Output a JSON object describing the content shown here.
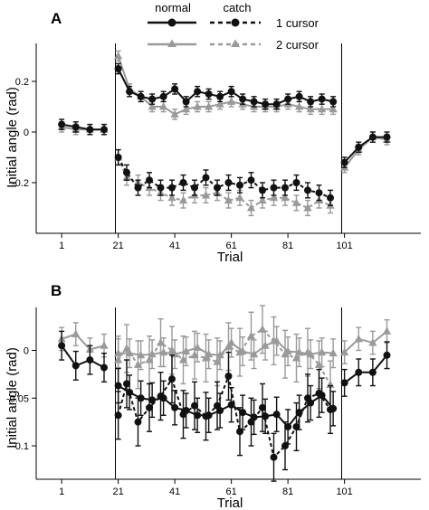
{
  "legend": {
    "header_normal": "normal",
    "header_catch": "catch",
    "row1_label": "1 cursor",
    "row2_label": "2 cursor"
  },
  "colors": {
    "one_cursor": "#111111",
    "two_cursor": "#9a9a9a"
  },
  "chart_data": [
    {
      "panel": "A",
      "type": "line",
      "xlabel": "Trial",
      "ylabel": "Initial angle (rad)",
      "xlim": [
        -8,
        128
      ],
      "ylim": [
        -0.4,
        0.35
      ],
      "xticks": [
        1,
        21,
        41,
        61,
        81,
        101
      ],
      "xtick_labels": [
        "1",
        "21",
        "41",
        "61",
        "81",
        "101"
      ],
      "yticks": [
        -0.2,
        0,
        0.2
      ],
      "ytick_labels": [
        "-0.2",
        "0",
        "0.2"
      ],
      "block_boundaries": [
        20,
        100
      ],
      "series": [
        {
          "name": "normal 1 cursor",
          "group": "one",
          "condition": "normal",
          "segments": [
            {
              "x": [
                1,
                6,
                11,
                16
              ],
              "y": [
                0.03,
                0.02,
                0.01,
                0.01
              ],
              "err": [
                0.02,
                0.02,
                0.02,
                0.02
              ]
            },
            {
              "x": [
                21,
                25,
                29,
                33,
                37,
                41,
                45,
                49,
                53,
                57,
                61,
                65,
                69,
                73,
                77,
                81,
                85,
                89,
                93,
                97
              ],
              "y": [
                0.25,
                0.16,
                0.14,
                0.13,
                0.14,
                0.17,
                0.12,
                0.16,
                0.15,
                0.14,
                0.16,
                0.13,
                0.12,
                0.11,
                0.11,
                0.13,
                0.14,
                0.12,
                0.13,
                0.12
              ],
              "err": [
                0.02,
                0.02,
                0.02,
                0.02,
                0.02,
                0.02,
                0.02,
                0.02,
                0.02,
                0.02,
                0.02,
                0.02,
                0.02,
                0.02,
                0.02,
                0.02,
                0.02,
                0.02,
                0.02,
                0.02
              ]
            },
            {
              "x": [
                101,
                106,
                111,
                116
              ],
              "y": [
                -0.12,
                -0.06,
                -0.02,
                -0.02
              ],
              "err": [
                0.02,
                0.02,
                0.02,
                0.02
              ]
            }
          ]
        },
        {
          "name": "normal 2 cursor",
          "group": "two",
          "condition": "normal",
          "segments": [
            {
              "x": [
                1,
                6,
                11,
                16
              ],
              "y": [
                0.02,
                0.01,
                0.01,
                0.01
              ],
              "err": [
                0.02,
                0.02,
                0.02,
                0.02
              ]
            },
            {
              "x": [
                21,
                25,
                29,
                33,
                37,
                41,
                45,
                49,
                53,
                57,
                61,
                65,
                69,
                73,
                77,
                81,
                85,
                89,
                93,
                97
              ],
              "y": [
                0.3,
                0.17,
                0.14,
                0.1,
                0.1,
                0.07,
                0.09,
                0.1,
                0.1,
                0.11,
                0.12,
                0.11,
                0.1,
                0.1,
                0.1,
                0.11,
                0.1,
                0.09,
                0.09,
                0.09
              ],
              "err": [
                0.02,
                0.02,
                0.02,
                0.02,
                0.02,
                0.02,
                0.02,
                0.02,
                0.02,
                0.02,
                0.02,
                0.02,
                0.02,
                0.02,
                0.02,
                0.02,
                0.02,
                0.02,
                0.02,
                0.02
              ]
            },
            {
              "x": [
                101,
                106,
                111,
                116
              ],
              "y": [
                -0.14,
                -0.07,
                -0.02,
                -0.03
              ],
              "err": [
                0.02,
                0.02,
                0.02,
                0.02
              ]
            }
          ]
        },
        {
          "name": "catch 1 cursor",
          "group": "one",
          "condition": "catch",
          "segments": [
            {
              "x": [
                21,
                24,
                28,
                32,
                36,
                40,
                44,
                48,
                52,
                56,
                60,
                64,
                68,
                72,
                76,
                80,
                84,
                88,
                92,
                96
              ],
              "y": [
                -0.1,
                -0.16,
                -0.22,
                -0.19,
                -0.22,
                -0.22,
                -0.2,
                -0.22,
                -0.18,
                -0.22,
                -0.2,
                -0.21,
                -0.19,
                -0.23,
                -0.22,
                -0.22,
                -0.2,
                -0.23,
                -0.24,
                -0.26
              ],
              "err": [
                0.03,
                0.03,
                0.03,
                0.03,
                0.03,
                0.03,
                0.03,
                0.03,
                0.03,
                0.03,
                0.03,
                0.03,
                0.03,
                0.03,
                0.03,
                0.03,
                0.03,
                0.03,
                0.03,
                0.03
              ]
            }
          ]
        },
        {
          "name": "catch 2 cursor",
          "group": "two",
          "condition": "catch",
          "segments": [
            {
              "x": [
                21,
                24,
                28,
                32,
                36,
                40,
                44,
                48,
                52,
                56,
                60,
                64,
                68,
                72,
                76,
                80,
                84,
                88,
                92,
                96
              ],
              "y": [
                -0.1,
                -0.18,
                -0.2,
                -0.22,
                -0.24,
                -0.26,
                -0.27,
                -0.25,
                -0.25,
                -0.24,
                -0.27,
                -0.26,
                -0.3,
                -0.27,
                -0.26,
                -0.26,
                -0.28,
                -0.3,
                -0.27,
                -0.29
              ],
              "err": [
                0.03,
                0.03,
                0.03,
                0.03,
                0.03,
                0.03,
                0.03,
                0.03,
                0.03,
                0.03,
                0.03,
                0.03,
                0.03,
                0.03,
                0.03,
                0.03,
                0.03,
                0.03,
                0.03,
                0.03
              ]
            }
          ]
        }
      ]
    },
    {
      "panel": "B",
      "type": "line",
      "xlabel": "Trial",
      "ylabel": "Initial angle (rad)",
      "xlim": [
        -8,
        128
      ],
      "ylim": [
        -0.135,
        0.045
      ],
      "xticks": [
        1,
        21,
        41,
        61,
        81,
        101
      ],
      "xtick_labels": [
        "1",
        "21",
        "41",
        "61",
        "81",
        "101"
      ],
      "yticks": [
        -0.1,
        -0.05,
        0
      ],
      "ytick_labels": [
        "-0.1",
        "-0.05",
        "0"
      ],
      "block_boundaries": [
        20,
        100
      ],
      "series": [
        {
          "name": "normal 1 cursor",
          "group": "one",
          "condition": "normal",
          "segments": [
            {
              "x": [
                1,
                6,
                11,
                16
              ],
              "y": [
                0.005,
                -0.016,
                -0.01,
                -0.018
              ],
              "err": [
                0.015,
                0.015,
                0.015,
                0.015
              ]
            },
            {
              "x": [
                21,
                25,
                29,
                33,
                37,
                41,
                45,
                49,
                53,
                57,
                61,
                65,
                69,
                73,
                77,
                81,
                85,
                89,
                93,
                97
              ],
              "y": [
                -0.037,
                -0.044,
                -0.05,
                -0.052,
                -0.05,
                -0.06,
                -0.063,
                -0.068,
                -0.068,
                -0.063,
                -0.057,
                -0.065,
                -0.07,
                -0.069,
                -0.067,
                -0.08,
                -0.065,
                -0.055,
                -0.047,
                -0.061
              ],
              "err": [
                0.018,
                0.018,
                0.018,
                0.018,
                0.018,
                0.018,
                0.018,
                0.018,
                0.018,
                0.018,
                0.018,
                0.018,
                0.018,
                0.018,
                0.018,
                0.018,
                0.018,
                0.018,
                0.018,
                0.018
              ]
            },
            {
              "x": [
                101,
                106,
                111,
                116
              ],
              "y": [
                -0.034,
                -0.023,
                -0.023,
                -0.005
              ],
              "err": [
                0.014,
                0.014,
                0.014,
                0.014
              ]
            }
          ]
        },
        {
          "name": "normal 2 cursor",
          "group": "two",
          "condition": "normal",
          "segments": [
            {
              "x": [
                1,
                6,
                11,
                16
              ],
              "y": [
                0.012,
                0.017,
                0.001,
                0.005
              ],
              "err": [
                0.012,
                0.012,
                0.012,
                0.012
              ]
            },
            {
              "x": [
                21,
                25,
                29,
                33,
                37,
                41,
                45,
                49,
                53,
                57,
                61,
                65,
                69,
                73,
                77,
                81,
                85,
                89,
                93,
                97
              ],
              "y": [
                -0.003,
                -0.003,
                -0.005,
                -0.004,
                -0.002,
                -0.004,
                -0.001,
                0.003,
                -0.004,
                -0.005,
                0.008,
                -0.001,
                -0.004,
                0.005,
                0.01,
                -0.001,
                -0.002,
                -0.004,
                -0.002,
                -0.003
              ],
              "err": [
                0.015,
                0.015,
                0.015,
                0.015,
                0.015,
                0.015,
                0.015,
                0.015,
                0.015,
                0.015,
                0.015,
                0.015,
                0.015,
                0.015,
                0.015,
                0.015,
                0.015,
                0.015,
                0.015,
                0.015
              ]
            },
            {
              "x": [
                101,
                106,
                111,
                116
              ],
              "y": [
                -0.002,
                0.012,
                0.008,
                0.02
              ],
              "err": [
                0.012,
                0.012,
                0.012,
                0.012
              ]
            }
          ]
        },
        {
          "name": "catch 1 cursor",
          "group": "one",
          "condition": "catch",
          "segments": [
            {
              "x": [
                21,
                24,
                28,
                32,
                36,
                40,
                44,
                48,
                52,
                56,
                60,
                64,
                68,
                72,
                76,
                80,
                84,
                88,
                92,
                96
              ],
              "y": [
                -0.068,
                -0.035,
                -0.075,
                -0.06,
                -0.048,
                -0.03,
                -0.067,
                -0.058,
                -0.069,
                -0.058,
                -0.027,
                -0.085,
                -0.075,
                -0.06,
                -0.112,
                -0.1,
                -0.08,
                -0.05,
                -0.045,
                -0.062
              ],
              "err": [
                0.025,
                0.025,
                0.025,
                0.025,
                0.025,
                0.025,
                0.025,
                0.025,
                0.025,
                0.025,
                0.025,
                0.025,
                0.025,
                0.025,
                0.025,
                0.025,
                0.025,
                0.025,
                0.025,
                0.025
              ]
            }
          ]
        },
        {
          "name": "catch 2 cursor",
          "group": "two",
          "condition": "catch",
          "segments": [
            {
              "x": [
                21,
                24,
                28,
                32,
                36,
                40,
                44,
                48,
                52,
                56,
                60,
                64,
                68,
                72,
                76,
                80,
                84,
                88,
                92,
                96
              ],
              "y": [
                -0.01,
                0.002,
                -0.015,
                -0.01,
                0.008,
                0.0,
                -0.01,
                -0.005,
                -0.008,
                -0.012,
                0.004,
                -0.002,
                0.015,
                0.022,
                0.01,
                -0.004,
                -0.008,
                -0.002,
                -0.015,
                -0.036
              ],
              "err": [
                0.025,
                0.025,
                0.025,
                0.025,
                0.025,
                0.025,
                0.025,
                0.025,
                0.025,
                0.025,
                0.025,
                0.025,
                0.025,
                0.025,
                0.025,
                0.025,
                0.025,
                0.025,
                0.025,
                0.025
              ]
            }
          ]
        }
      ]
    }
  ]
}
